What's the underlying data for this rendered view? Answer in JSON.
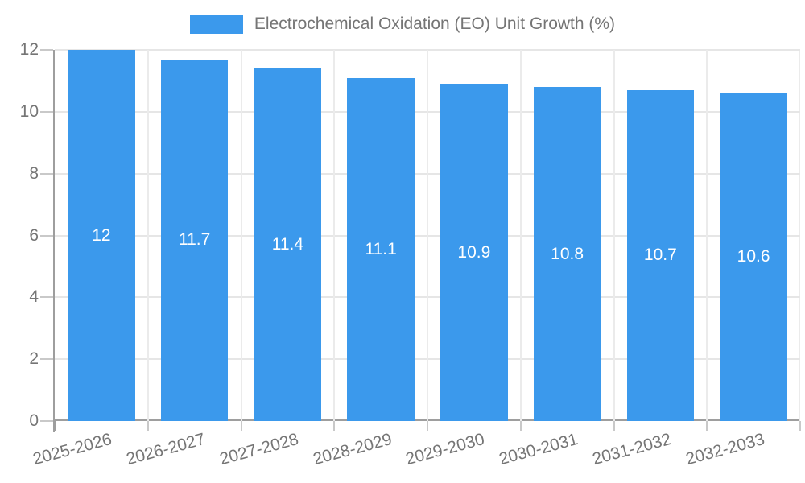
{
  "legend": {
    "label": "Electrochemical Oxidation (EO) Unit Growth (%)"
  },
  "colors": {
    "bar": "#3b99ec",
    "axis_line": "#9e9e9e",
    "grid_line": "#e6e6e6",
    "tick_mark": "#c9c9c9",
    "label_text": "#757575",
    "value_label_text": "#ffffff",
    "background": "#ffffff"
  },
  "chart_data": {
    "type": "bar",
    "title": "Electrochemical Oxidation (EO) Unit Growth (%)",
    "categories": [
      "2025-2026",
      "2026-2027",
      "2027-2028",
      "2028-2029",
      "2029-2030",
      "2030-2031",
      "2031-2032",
      "2032-2033"
    ],
    "values": [
      12,
      11.7,
      11.4,
      11.1,
      10.9,
      10.8,
      10.7,
      10.6
    ],
    "value_labels": [
      "12",
      "11.7",
      "11.4",
      "11.1",
      "10.9",
      "10.8",
      "10.7",
      "10.6"
    ],
    "xlabel": "",
    "ylabel": "",
    "ylim": [
      0,
      12
    ],
    "yticks": [
      0,
      2,
      4,
      6,
      8,
      10,
      12
    ],
    "grid": true,
    "legend_position": "top",
    "bar_width_fraction": 0.72
  }
}
